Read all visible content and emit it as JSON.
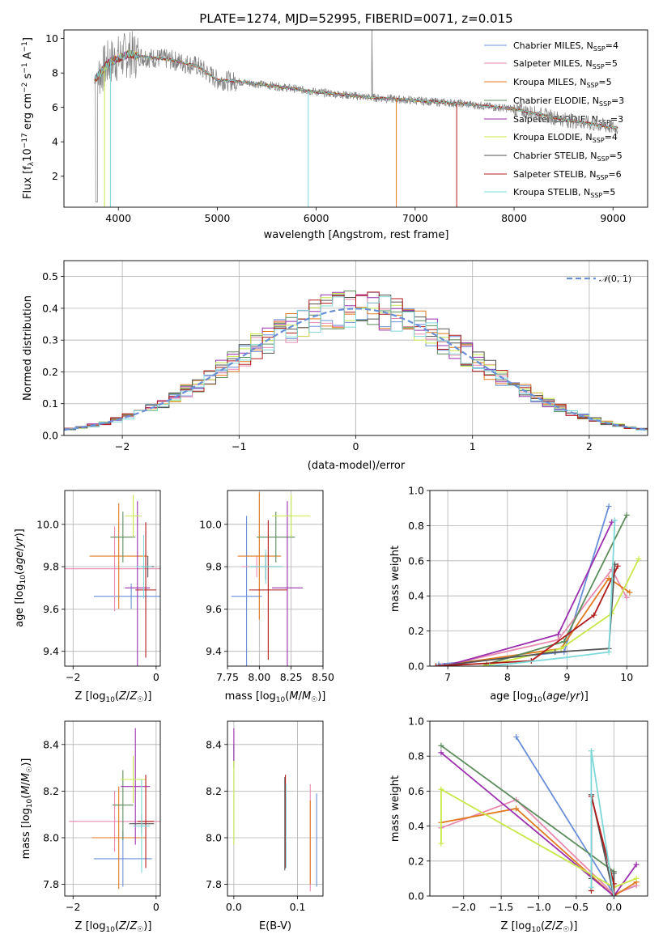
{
  "figure_title": "PLATE=1274, MJD=52995, FIBERID=0071, z=0.015",
  "colors": {
    "chabrier_miles": "#6a8fd8",
    "salpeter_miles": "#e88ab0",
    "kroupa_miles": "#e07a1f",
    "chabrier_elodie": "#5c8c5c",
    "salpeter_elodie": "#9b2fae",
    "kroupa_elodie": "#c8e84a",
    "chabrier_stelib": "#555555",
    "salpeter_stelib": "#b01a1a",
    "kroupa_stelib": "#7fd8d8",
    "data": "#808080",
    "grid": "#b0b0b0"
  },
  "chart_data": [
    {
      "id": "spectrum",
      "type": "line",
      "title": "PLATE=1274, MJD=52995, FIBERID=0071, z=0.015",
      "xlabel": "wavelength [Angstrom, rest frame]",
      "ylabel": "Flux [fλ10⁻¹⁷ erg cm⁻² s⁻¹ A⁻¹]",
      "xlim": [
        3450,
        9350
      ],
      "ylim": [
        0.2,
        10.5
      ],
      "xticks": [
        4000,
        5000,
        6000,
        7000,
        8000,
        9000
      ],
      "yticks": [
        2,
        4,
        6,
        8,
        10
      ],
      "grid": false,
      "legend_position": "top-right",
      "series": [
        {
          "name": "Chabrier MILES, N_SSP=4",
          "color_key": "chabrier_miles"
        },
        {
          "name": "Salpeter MILES, N_SSP=5",
          "color_key": "salpeter_miles"
        },
        {
          "name": "Kroupa MILES, N_SSP=5",
          "color_key": "kroupa_miles"
        },
        {
          "name": "Chabrier ELODIE, N_SSP=3",
          "color_key": "chabrier_elodie"
        },
        {
          "name": "Salpeter ELODIE, N_SSP=3",
          "color_key": "salpeter_elodie"
        },
        {
          "name": "Kroupa ELODIE, N_SSP=4",
          "color_key": "kroupa_elodie"
        },
        {
          "name": "Chabrier STELIB, N_SSP=5",
          "color_key": "chabrier_stelib"
        },
        {
          "name": "Salpeter STELIB, N_SSP=6",
          "color_key": "salpeter_stelib"
        },
        {
          "name": "Kroupa STELIB, N_SSP=5",
          "color_key": "kroupa_stelib"
        }
      ],
      "continuum": [
        [
          3760,
          7.6
        ],
        [
          3900,
          8.6
        ],
        [
          4100,
          9.1
        ],
        [
          4300,
          8.9
        ],
        [
          4500,
          8.8
        ],
        [
          4800,
          8.4
        ],
        [
          5000,
          7.6
        ],
        [
          5200,
          7.5
        ],
        [
          5500,
          7.3
        ],
        [
          6000,
          6.9
        ],
        [
          6500,
          6.6
        ],
        [
          7000,
          6.4
        ],
        [
          7500,
          6.2
        ],
        [
          8000,
          5.9
        ],
        [
          8500,
          5.3
        ],
        [
          9050,
          4.8
        ]
      ]
    },
    {
      "id": "residuals",
      "type": "histogram",
      "xlabel": "(data-model)/error",
      "ylabel": "Normed distribution",
      "xlim": [
        -2.5,
        2.5
      ],
      "ylim": [
        0,
        0.55
      ],
      "xticks": [
        -2,
        -1,
        0,
        1,
        2
      ],
      "yticks": [
        0.0,
        0.1,
        0.2,
        0.3,
        0.4,
        0.5
      ],
      "grid": true,
      "legend": "N(0, 1)",
      "legend_position": "top-right",
      "bin_width": 0.1,
      "bin_start": -2.5,
      "normal_curve": {
        "mean": 0,
        "sigma": 1
      }
    },
    {
      "id": "age_vs_Z",
      "type": "errorbar",
      "xlabel": "Z [log10(Z/Z☉)]",
      "ylabel": "age  [log10(age/yr)]",
      "xlim": [
        -2.2,
        0.1
      ],
      "ylim": [
        9.33,
        10.16
      ],
      "xticks": [
        -2,
        0
      ],
      "yticks": [
        9.4,
        9.6,
        9.8,
        10.0
      ],
      "grid": true,
      "points": [
        {
          "series": "chabrier_miles",
          "x": -0.6,
          "xerr": 0.9,
          "y": 9.66,
          "yerr": 0.06
        },
        {
          "series": "salpeter_miles",
          "x": -1.0,
          "xerr": 1.3,
          "y": 9.79,
          "yerr": 0.2
        },
        {
          "series": "kroupa_miles",
          "x": -0.9,
          "xerr": 0.7,
          "y": 9.85,
          "yerr": 0.25
        },
        {
          "series": "chabrier_elodie",
          "x": -0.8,
          "xerr": 0.3,
          "y": 9.94,
          "yerr": 0.12
        },
        {
          "series": "salpeter_elodie",
          "x": -0.45,
          "xerr": 0.3,
          "y": 9.7,
          "yerr": 0.41
        },
        {
          "series": "kroupa_elodie",
          "x": -0.55,
          "xerr": 0.2,
          "y": 10.04,
          "yerr": 0.1
        },
        {
          "series": "chabrier_stelib",
          "x": -0.2,
          "xerr": 0.15,
          "y": 9.8,
          "yerr": 0.05
        },
        {
          "series": "salpeter_stelib",
          "x": -0.25,
          "xerr": 0.25,
          "y": 9.69,
          "yerr": 0.32
        },
        {
          "series": "kroupa_stelib",
          "x": -0.3,
          "xerr": 0.2,
          "y": 9.8,
          "yerr": 0.15
        }
      ]
    },
    {
      "id": "age_vs_mass",
      "type": "errorbar",
      "xlabel": "mass [log10(M/M☉)]",
      "ylabel": "",
      "xlim": [
        7.75,
        8.5
      ],
      "ylim": [
        9.33,
        10.16
      ],
      "xticks": [
        7.75,
        8.0,
        8.25,
        8.5
      ],
      "yticks": [
        9.4,
        9.6,
        9.8,
        10.0
      ],
      "grid": true,
      "points": [
        {
          "series": "chabrier_miles",
          "x": 7.9,
          "xerr": 0.12,
          "y": 9.66,
          "yerr": 0.38
        },
        {
          "series": "salpeter_miles",
          "x": 7.98,
          "xerr": 0.12,
          "y": 9.8,
          "yerr": 0.05
        },
        {
          "series": "kroupa_miles",
          "x": 8.0,
          "xerr": 0.17,
          "y": 9.85,
          "yerr": 0.3
        },
        {
          "series": "chabrier_elodie",
          "x": 8.13,
          "xerr": 0.15,
          "y": 9.94,
          "yerr": 0.12
        },
        {
          "series": "salpeter_elodie",
          "x": 8.22,
          "xerr": 0.12,
          "y": 9.7,
          "yerr": 0.41
        },
        {
          "series": "kroupa_elodie",
          "x": 8.25,
          "xerr": 0.15,
          "y": 10.04,
          "yerr": 0.1
        },
        {
          "series": "chabrier_stelib",
          "x": 8.05,
          "xerr": 0.13,
          "y": 9.8,
          "yerr": 0.06
        },
        {
          "series": "salpeter_stelib",
          "x": 8.07,
          "xerr": 0.15,
          "y": 9.69,
          "yerr": 0.33
        },
        {
          "series": "kroupa_stelib",
          "x": 8.05,
          "xerr": 0.13,
          "y": 9.8,
          "yerr": 0.08
        }
      ]
    },
    {
      "id": "weight_vs_age",
      "type": "line",
      "xlabel": "age  [log10(age/yr)]",
      "ylabel": "mass weight",
      "xlim": [
        6.7,
        10.35
      ],
      "ylim": [
        0,
        1.0
      ],
      "xticks": [
        7,
        8,
        9,
        10
      ],
      "yticks": [
        0.0,
        0.2,
        0.4,
        0.6,
        0.8,
        1.0
      ],
      "grid": true,
      "series": [
        {
          "name": "chabrier_miles",
          "x": [
            6.85,
            8.95,
            9.7
          ],
          "y": [
            0.01,
            0.08,
            0.91
          ]
        },
        {
          "name": "salpeter_miles",
          "x": [
            6.9,
            8.85,
            9.75,
            10.0
          ],
          "y": [
            0.0,
            0.15,
            0.55,
            0.39
          ]
        },
        {
          "name": "kroupa_miles",
          "x": [
            6.85,
            8.9,
            9.7,
            10.05
          ],
          "y": [
            0.0,
            0.1,
            0.5,
            0.42
          ]
        },
        {
          "name": "chabrier_elodie",
          "x": [
            7.65,
            8.95,
            10.0
          ],
          "y": [
            0.01,
            0.14,
            0.86
          ]
        },
        {
          "name": "salpeter_elodie",
          "x": [
            6.95,
            8.85,
            9.75
          ],
          "y": [
            0.0,
            0.18,
            0.82
          ]
        },
        {
          "name": "kroupa_elodie",
          "x": [
            7.6,
            8.9,
            9.75,
            10.2
          ],
          "y": [
            0.0,
            0.1,
            0.3,
            0.61
          ]
        },
        {
          "name": "chabrier_stelib",
          "x": [
            6.85,
            8.8,
            9.7,
            9.8
          ],
          "y": [
            0.0,
            0.08,
            0.1,
            0.58
          ]
        },
        {
          "name": "salpeter_stelib",
          "x": [
            6.8,
            8.4,
            9.45,
            9.85
          ],
          "y": [
            0.0,
            0.03,
            0.29,
            0.57
          ]
        },
        {
          "name": "kroupa_stelib",
          "x": [
            7.7,
            9.0,
            9.7,
            9.8
          ],
          "y": [
            0.0,
            0.05,
            0.08,
            0.83
          ]
        }
      ]
    },
    {
      "id": "mass_vs_Z",
      "type": "errorbar",
      "xlabel": "Z [log10(Z/Z☉)]",
      "ylabel": "mass [log10(M/M☉)]",
      "xlim": [
        -2.2,
        0.1
      ],
      "ylim": [
        7.75,
        8.5
      ],
      "xticks": [
        -2,
        0
      ],
      "yticks": [
        7.8,
        8.0,
        8.2,
        8.4
      ],
      "grid": true,
      "points": [
        {
          "series": "chabrier_miles",
          "x": -0.8,
          "xerr": 0.7,
          "y": 7.91,
          "yerr": 0.12
        },
        {
          "series": "salpeter_miles",
          "x": -1.0,
          "xerr": 1.1,
          "y": 8.07,
          "yerr": 0.13
        },
        {
          "series": "kroupa_miles",
          "x": -0.9,
          "xerr": 0.65,
          "y": 8.0,
          "yerr": 0.22
        },
        {
          "series": "chabrier_elodie",
          "x": -0.8,
          "xerr": 0.25,
          "y": 8.14,
          "yerr": 0.15
        },
        {
          "series": "salpeter_elodie",
          "x": -0.5,
          "xerr": 0.35,
          "y": 8.22,
          "yerr": 0.25
        },
        {
          "series": "kroupa_elodie",
          "x": -0.55,
          "xerr": 0.3,
          "y": 8.25,
          "yerr": 0.1
        },
        {
          "series": "chabrier_stelib",
          "x": -0.35,
          "xerr": 0.3,
          "y": 8.06,
          "yerr": 0.04
        },
        {
          "series": "salpeter_stelib",
          "x": -0.25,
          "xerr": 0.2,
          "y": 8.07,
          "yerr": 0.2
        },
        {
          "series": "kroupa_stelib",
          "x": -0.35,
          "xerr": 0.2,
          "y": 8.05,
          "yerr": 0.2
        }
      ]
    },
    {
      "id": "mass_vs_ebv",
      "type": "errorbar",
      "xlabel": "E(B-V)",
      "ylabel": "",
      "xlim": [
        -0.01,
        0.14
      ],
      "ylim": [
        7.75,
        8.5
      ],
      "xticks": [
        0.0,
        0.1
      ],
      "yticks": [
        7.8,
        8.0,
        8.2,
        8.4
      ],
      "grid": true,
      "points": [
        {
          "series": "chabrier_miles",
          "x": 0.13,
          "xerr": 0,
          "y": 7.99,
          "yerr": 0.2
        },
        {
          "series": "salpeter_miles",
          "x": 0.12,
          "xerr": 0,
          "y": 8.0,
          "yerr": 0.23
        },
        {
          "series": "kroupa_miles",
          "x": 0.12,
          "xerr": 0,
          "y": 7.98,
          "yerr": 0.18
        },
        {
          "series": "chabrier_elodie",
          "x": 0.0,
          "xerr": 0,
          "y": 8.35,
          "yerr": 0.05
        },
        {
          "series": "salpeter_elodie",
          "x": 0.0,
          "xerr": 0,
          "y": 8.4,
          "yerr": 0.07
        },
        {
          "series": "kroupa_elodie",
          "x": 0.0,
          "xerr": 0,
          "y": 8.15,
          "yerr": 0.18
        },
        {
          "series": "chabrier_stelib",
          "x": 0.08,
          "xerr": 0,
          "y": 8.06,
          "yerr": 0.2
        },
        {
          "series": "salpeter_stelib",
          "x": 0.081,
          "xerr": 0,
          "y": 8.07,
          "yerr": 0.2
        },
        {
          "series": "kroupa_stelib",
          "x": 0.082,
          "xerr": 0,
          "y": 8.05,
          "yerr": 0.18
        }
      ]
    },
    {
      "id": "weight_vs_Z",
      "type": "line",
      "xlabel": "Z [log10(Z/Z☉)]",
      "ylabel": "mass weight",
      "xlim": [
        -2.45,
        0.45
      ],
      "ylim": [
        0,
        1.0
      ],
      "xticks": [
        -2.0,
        -1.5,
        -1.0,
        -0.5,
        0.0
      ],
      "yticks": [
        0.0,
        0.2,
        0.4,
        0.6,
        0.8,
        1.0
      ],
      "grid": true,
      "series": [
        {
          "name": "chabrier_miles",
          "x": [
            -1.3,
            0.0,
            0.3
          ],
          "y": [
            0.91,
            0.01,
            0.06
          ]
        },
        {
          "name": "salpeter_miles",
          "x": [
            -2.3,
            -1.3,
            0.0,
            0.3
          ],
          "y": [
            0.39,
            0.55,
            0.01,
            0.06
          ]
        },
        {
          "name": "kroupa_miles",
          "x": [
            -2.3,
            -1.3,
            0.0,
            0.3
          ],
          "y": [
            0.42,
            0.5,
            0.0,
            0.08
          ]
        },
        {
          "name": "chabrier_elodie",
          "x": [
            -2.3,
            0.0,
            0.0
          ],
          "y": [
            0.86,
            0.14,
            0.0
          ]
        },
        {
          "name": "salpeter_elodie",
          "x": [
            -2.3,
            0.0,
            0.3
          ],
          "y": [
            0.82,
            0.0,
            0.18
          ]
        },
        {
          "name": "kroupa_elodie",
          "x": [
            -2.3,
            -2.3,
            0.0,
            0.3
          ],
          "y": [
            0.3,
            0.61,
            0.05,
            0.1
          ]
        },
        {
          "name": "chabrier_stelib",
          "x": [
            -0.3,
            -0.3,
            0.0,
            0.0
          ],
          "y": [
            0.1,
            0.58,
            0.0,
            0.13
          ]
        },
        {
          "name": "salpeter_stelib",
          "x": [
            -0.3,
            -0.3,
            0.0,
            0.0
          ],
          "y": [
            0.03,
            0.57,
            0.07,
            0.01
          ]
        },
        {
          "name": "kroupa_stelib",
          "x": [
            -0.3,
            -0.3,
            0.0
          ],
          "y": [
            0.05,
            0.83,
            0.0
          ]
        }
      ]
    }
  ]
}
